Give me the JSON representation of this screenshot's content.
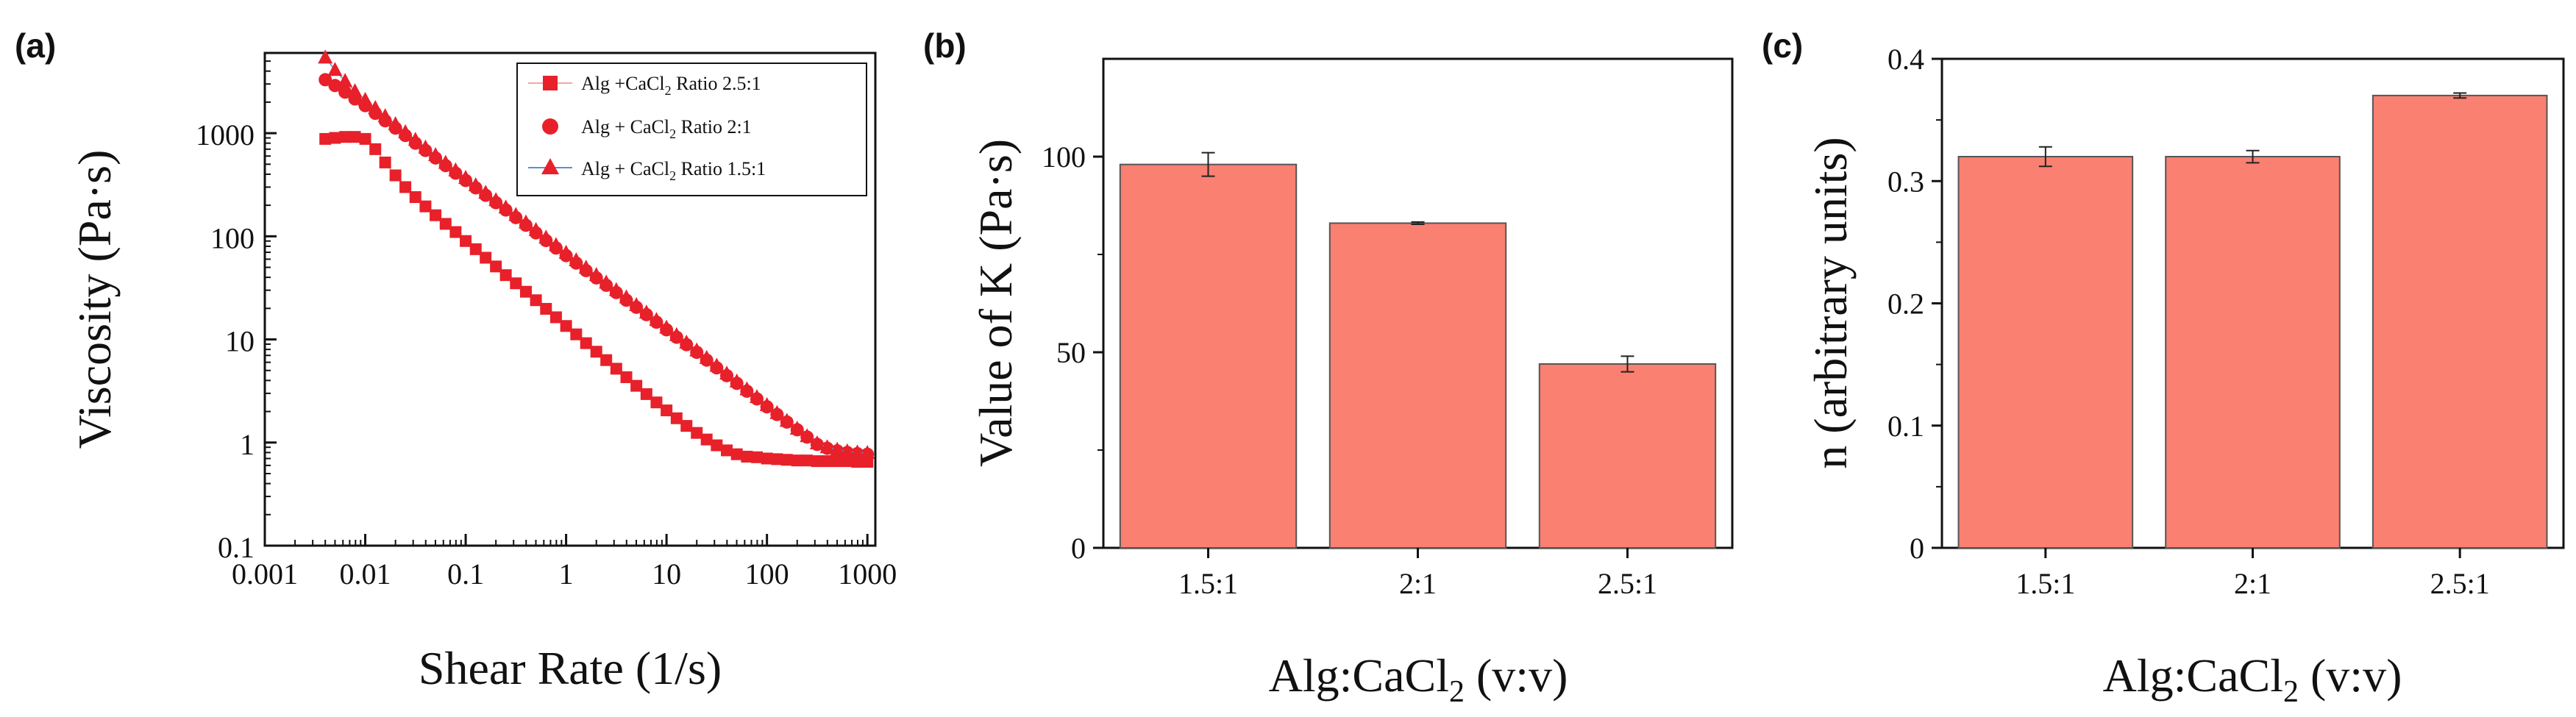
{
  "colors": {
    "marker": "#e8202a",
    "bar_fill": "#fa8072",
    "bar_stroke": "#555555",
    "axis": "#111111",
    "legend_line_a": "#f2a6a6",
    "legend_line_c": "#5b8fd0"
  },
  "chart_data": [
    {
      "panel_label": "(a)",
      "type": "scatter",
      "scale": "log-log",
      "xlabel": "Shear Rate (1/s)",
      "ylabel": "Viscosity (Pa·s)",
      "xlim": [
        0.001,
        1200
      ],
      "ylim": [
        0.1,
        6000
      ],
      "x_ticks": [
        0.001,
        0.01,
        0.1,
        1,
        10,
        100,
        1000
      ],
      "x_tick_labels": [
        "0.001",
        "0.01",
        "0.1",
        "1",
        "10",
        "100",
        "1000"
      ],
      "y_ticks": [
        0.1,
        1,
        10,
        100,
        1000
      ],
      "y_tick_labels": [
        "0.1",
        "1",
        "10",
        "100",
        "1000"
      ],
      "legend": {
        "placement": "top-right"
      },
      "series": [
        {
          "name": "Alg +CaCl2 Ratio 2.5:1",
          "name_parts": {
            "pre": "Alg +CaCl",
            "sub": "2",
            "post": " Ratio 2.5:1"
          },
          "marker": "square",
          "x": [
            0.004,
            0.005,
            0.0063,
            0.0079,
            0.01,
            0.0126,
            0.0158,
            0.02,
            0.0251,
            0.0316,
            0.0398,
            0.0501,
            0.0631,
            0.0794,
            0.1,
            0.126,
            0.158,
            0.2,
            0.251,
            0.316,
            0.398,
            0.501,
            0.631,
            0.794,
            1,
            1.26,
            1.58,
            2,
            2.51,
            3.16,
            3.98,
            5.01,
            6.31,
            7.94,
            10,
            12.6,
            15.8,
            20,
            25.1,
            31.6,
            39.8,
            50.1,
            63.1,
            79.4,
            100,
            126,
            158,
            200,
            251,
            316,
            398,
            501,
            631,
            794,
            1000
          ],
          "y": [
            880,
            900,
            920,
            920,
            880,
            700,
            520,
            390,
            300,
            240,
            195,
            160,
            132,
            110,
            90,
            75,
            62,
            51,
            42,
            35,
            29,
            24,
            19.8,
            16.4,
            13.5,
            11.2,
            9.2,
            7.6,
            6.3,
            5.2,
            4.3,
            3.55,
            2.95,
            2.45,
            2.05,
            1.72,
            1.45,
            1.24,
            1.07,
            0.94,
            0.84,
            0.77,
            0.73,
            0.72,
            0.7,
            0.69,
            0.68,
            0.67,
            0.67,
            0.66,
            0.66,
            0.66,
            0.66,
            0.65,
            0.65
          ]
        },
        {
          "name": "Alg + CaCl2 Ratio 2:1",
          "name_parts": {
            "pre": "Alg + CaCl",
            "sub": "2",
            "post": " Ratio 2:1"
          },
          "marker": "circle",
          "x": [
            0.004,
            0.005,
            0.0063,
            0.0079,
            0.01,
            0.0126,
            0.0158,
            0.02,
            0.0251,
            0.0316,
            0.0398,
            0.0501,
            0.0631,
            0.0794,
            0.1,
            0.126,
            0.158,
            0.2,
            0.251,
            0.316,
            0.398,
            0.501,
            0.631,
            0.794,
            1,
            1.26,
            1.58,
            2,
            2.51,
            3.16,
            3.98,
            5.01,
            6.31,
            7.94,
            10,
            12.6,
            15.8,
            20,
            25.1,
            31.6,
            39.8,
            50.1,
            63.1,
            79.4,
            100,
            126,
            158,
            200,
            251,
            316,
            398,
            501,
            631,
            794,
            1000
          ],
          "y": [
            3300,
            2900,
            2500,
            2150,
            1850,
            1560,
            1320,
            1120,
            950,
            800,
            680,
            575,
            485,
            410,
            348,
            295,
            250,
            212,
            180,
            152,
            128,
            108,
            91,
            77,
            65,
            55,
            46.5,
            39.5,
            33.5,
            28.5,
            24,
            20.5,
            17.4,
            14.7,
            12.4,
            10.5,
            8.9,
            7.5,
            6.3,
            5.3,
            4.45,
            3.75,
            3.15,
            2.65,
            2.22,
            1.87,
            1.58,
            1.33,
            1.13,
            0.96,
            0.88,
            0.83,
            0.8,
            0.78,
            0.77
          ]
        },
        {
          "name": "Alg + CaCl2 Ratio 1.5:1",
          "name_parts": {
            "pre": "Alg + CaCl",
            "sub": "2",
            "post": " Ratio 1.5:1"
          },
          "marker": "triangle",
          "x": [
            0.004,
            0.005,
            0.0063,
            0.0079,
            0.01,
            0.0126,
            0.0158,
            0.02,
            0.0251,
            0.0316,
            0.0398,
            0.0501,
            0.0631,
            0.0794,
            0.1,
            0.126,
            0.158,
            0.2,
            0.251,
            0.316,
            0.398,
            0.501,
            0.631,
            0.794,
            1,
            1.26,
            1.58,
            2,
            2.51,
            3.16,
            3.98,
            5.01,
            6.31,
            7.94,
            10,
            12.6,
            15.8,
            20,
            25.1,
            31.6,
            39.8,
            50.1,
            63.1,
            79.4,
            100,
            126,
            158,
            200,
            251,
            316,
            398,
            501,
            631,
            794,
            1000
          ],
          "y": [
            5400,
            4100,
            3200,
            2550,
            2100,
            1750,
            1460,
            1220,
            1020,
            860,
            725,
            612,
            515,
            435,
            368,
            312,
            264,
            224,
            190,
            161,
            136,
            115,
            97,
            82,
            69,
            58.5,
            49.5,
            42,
            35.5,
            30,
            25.5,
            21.5,
            18.2,
            15.4,
            13,
            11,
            9.3,
            7.8,
            6.6,
            5.55,
            4.65,
            3.9,
            3.28,
            2.75,
            2.3,
            1.93,
            1.62,
            1.36,
            1.15,
            0.98,
            0.9,
            0.85,
            0.82,
            0.8,
            0.79
          ]
        }
      ]
    },
    {
      "panel_label": "(b)",
      "type": "bar",
      "categories": [
        "1.5:1",
        "2:1",
        "2.5:1"
      ],
      "values": [
        98,
        83,
        47
      ],
      "errors": [
        3,
        0.3,
        2
      ],
      "xlabel_parts": {
        "pre": "Alg:CaCl",
        "sub": "2",
        "post": " (v:v)"
      },
      "xlabel": "Alg:CaCl2 (v:v)",
      "ylabel": "Value of K (Pa·s)",
      "ylim": [
        0,
        125
      ],
      "y_ticks": [
        0,
        50,
        100
      ],
      "y_tick_labels": [
        "0",
        "50",
        "100"
      ]
    },
    {
      "panel_label": "(c)",
      "type": "bar",
      "categories": [
        "1.5:1",
        "2:1",
        "2.5:1"
      ],
      "values": [
        0.32,
        0.32,
        0.37
      ],
      "errors": [
        0.008,
        0.005,
        0.002
      ],
      "xlabel_parts": {
        "pre": "Alg:CaCl",
        "sub": "2",
        "post": " (v:v)"
      },
      "xlabel": "Alg:CaCl2 (v:v)",
      "ylabel": "n (arbitrary units)",
      "ylim": [
        0,
        0.4
      ],
      "y_ticks": [
        0,
        0.1,
        0.2,
        0.3,
        0.4
      ],
      "y_tick_labels": [
        "0",
        "0.1",
        "0.2",
        "0.3",
        "0.4"
      ]
    }
  ]
}
